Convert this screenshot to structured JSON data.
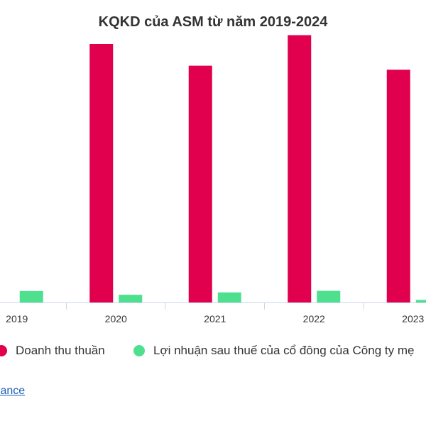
{
  "chart_data": {
    "type": "bar",
    "title": "KQKD của ASM từ năm 2019-2024",
    "categories": [
      "2019",
      "2020",
      "2021",
      "2022",
      "2023"
    ],
    "series": [
      {
        "name": "Doanh thu thuần",
        "color": "#e0004d",
        "values": [
          0,
          13100,
          12000,
          13550,
          11800
        ]
      },
      {
        "name": "Lợi nhuận sau thuế của cổ đông của Công ty mẹ",
        "color": "#4ee08f",
        "values": [
          580,
          390,
          510,
          590,
          130
        ]
      }
    ],
    "ylim": [
      0,
      14000
    ],
    "grid": false,
    "legend_position": "bottom"
  },
  "source": {
    "label": "inance"
  }
}
